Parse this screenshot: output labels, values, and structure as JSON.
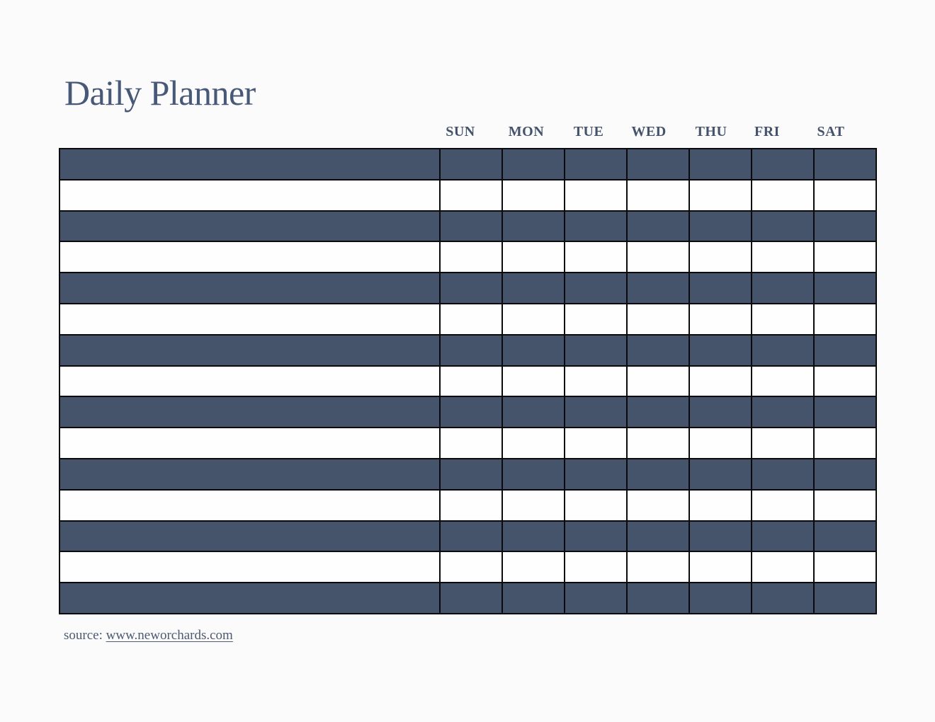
{
  "document": {
    "title": "Daily Planner"
  },
  "week_header": {
    "days": [
      "SUN",
      "MON",
      "TUE",
      "WED",
      "THU",
      "FRI",
      "SAT"
    ]
  },
  "planner_grid": {
    "row_count": 15,
    "day_column_count": 7,
    "label_column_count": 1,
    "cells_empty": true,
    "shading": "alternating rows starting dark"
  },
  "footer": {
    "source_label": "source:",
    "source_link_text": "www.neworchards.com"
  },
  "colors": {
    "page_background": "#FBFBFC",
    "row_dark": "#45536B",
    "row_light": "#FEFEFE",
    "grid_line": "#0B0B0D",
    "title_text": "#485877",
    "day_header_text": "#44526B",
    "footer_text": "#4C5A72"
  }
}
